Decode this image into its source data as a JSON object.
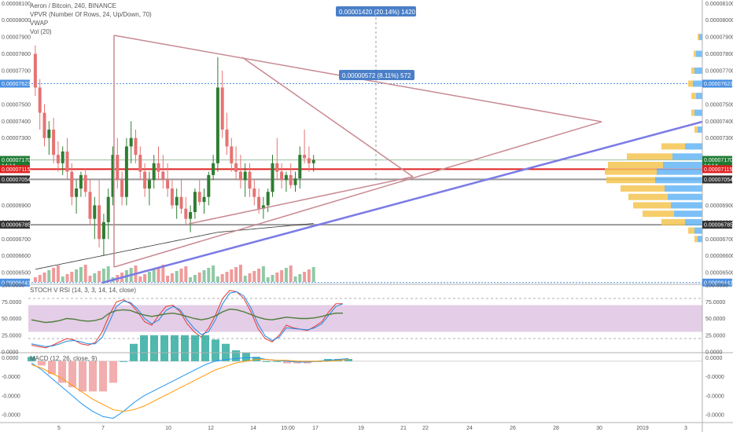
{
  "legend": {
    "title": "Aeron / Bitcoin, 240, BINANCE",
    "indicators": [
      "VPVR (Number Of Rows, 24, Up/Down, 70)",
      "VWAP",
      "Vol (20)"
    ],
    "stoch_label": "STOCH V RSI (14, 3, 3, 14, 14, close)",
    "macd_label": "MACD (12, 26, close, 9)"
  },
  "measurements": [
    {
      "text": "0.00001420 (20.14%) 1420"
    },
    {
      "text": "0.00000572 (8.11%) 572"
    }
  ],
  "price_axis": {
    "ticks": [
      "0.00008100",
      "0.00008000",
      "0.00007900",
      "0.00007800",
      "0.00007700",
      "0.00007500",
      "0.00007400",
      "0.00007300",
      "0.00006900",
      "0.00006800",
      "0.00006700",
      "0.00006600",
      "0.00006500"
    ],
    "tick_values": [
      8100,
      8000,
      7900,
      7800,
      7700,
      7500,
      7400,
      7300,
      6900,
      6800,
      6700,
      6600,
      6500
    ],
    "tags_left": [
      {
        "text": "0.00007623",
        "value": 7623,
        "color": "#4a90e2"
      },
      {
        "text": "0.00007170",
        "value": 7170,
        "color": "#1e7a33"
      },
      {
        "text": "14:14",
        "value": 7135,
        "color": "#1e7a33"
      },
      {
        "text": "0.00007115",
        "value": 7115,
        "color": "#e02020"
      },
      {
        "text": "0.00007054",
        "value": 7054,
        "color": "#333333"
      },
      {
        "text": "0.00006785",
        "value": 6785,
        "color": "#333333"
      },
      {
        "text": "0.00006441",
        "value": 6441,
        "color": "#4a90e2"
      }
    ],
    "tags_right": [
      {
        "text": "0.00007623",
        "value": 7623,
        "color": "#4a90e2"
      },
      {
        "text": "0.00007170",
        "value": 7170,
        "color": "#1e7a33"
      },
      {
        "text": "14:14",
        "value": 7135,
        "color": "#1e7a33"
      },
      {
        "text": "0.00007115",
        "value": 7115,
        "color": "#e02020"
      },
      {
        "text": "0.00007054",
        "value": 7054,
        "color": "#333333"
      },
      {
        "text": "0.00006785",
        "value": 6785,
        "color": "#333333"
      },
      {
        "text": "0.00006441",
        "value": 6441,
        "color": "#4a90e2"
      }
    ]
  },
  "stoch_axis": {
    "ticks": [
      "100.0000",
      "75.0000",
      "50.0000",
      "25.0000",
      "0.0000"
    ],
    "tick_values": [
      100,
      75,
      50,
      25,
      0
    ]
  },
  "macd_axis": {
    "ticks": [
      "0.0000",
      "-0.0000",
      "-0.0000",
      "-0.0000"
    ],
    "tick_values": [
      4e-06,
      -1.8e-05,
      -4e-05,
      -6.2e-05
    ]
  },
  "time_axis": {
    "labels": [
      "5",
      "7",
      "10",
      "12",
      "14",
      "15:00",
      "17",
      "19",
      "21",
      "22",
      "24",
      "26",
      "28",
      "30",
      "2019",
      "3"
    ]
  },
  "colors": {
    "up": "#2e7d32",
    "down": "#e57373",
    "vol_up": "#8fc9a5",
    "vol_down": "#ef9a9a",
    "triangle": "#c88a92",
    "trend": "#7b7be6",
    "resistance": "#e02020",
    "vpvr_up": "#64b5f6",
    "vpvr_down": "#f5c451",
    "stoch_band": "#d8b8dc",
    "k_line": "#e53935",
    "d_line": "#1e88e5",
    "rsi_line": "#4e7d3a",
    "macd_line": "#2196f3",
    "signal_line": "#ff9800"
  },
  "chart_data": [
    {
      "type": "candlestick",
      "title": "Aeron / Bitcoin, 240, BINANCE",
      "price_unit_note": "values in 1e-8 BTC (satoshi)",
      "ylim": [
        6440,
        8120
      ],
      "x_labels": [
        "5",
        "7",
        "10",
        "12",
        "14",
        "15:00",
        "17",
        "19",
        "21",
        "22",
        "24",
        "26",
        "28",
        "30",
        "2019",
        "3"
      ],
      "candles": [
        [
          7800,
          7850,
          7550,
          7600
        ],
        [
          7600,
          7650,
          7350,
          7450
        ],
        [
          7450,
          7500,
          7250,
          7300
        ],
        [
          7300,
          7400,
          7200,
          7350
        ],
        [
          7350,
          7420,
          7150,
          7200
        ],
        [
          7200,
          7280,
          7100,
          7150
        ],
        [
          7150,
          7250,
          7080,
          7220
        ],
        [
          7220,
          7300,
          7050,
          7100
        ],
        [
          7100,
          7150,
          6900,
          6950
        ],
        [
          6950,
          7050,
          6850,
          7000
        ],
        [
          7000,
          7100,
          6950,
          7080
        ],
        [
          7080,
          7120,
          6950,
          6980
        ],
        [
          6980,
          7050,
          6780,
          6820
        ],
        [
          6820,
          6950,
          6700,
          6900
        ],
        [
          6900,
          7050,
          6650,
          6700
        ],
        [
          6700,
          6850,
          6600,
          6800
        ],
        [
          6800,
          7000,
          6700,
          6950
        ],
        [
          6950,
          7250,
          6900,
          7200
        ],
        [
          7200,
          7300,
          7000,
          7050
        ],
        [
          7050,
          7100,
          6900,
          6950
        ],
        [
          6950,
          7300,
          6900,
          7250
        ],
        [
          7250,
          7400,
          7150,
          7300
        ],
        [
          7300,
          7350,
          7150,
          7200
        ],
        [
          7200,
          7250,
          7050,
          7100
        ],
        [
          7100,
          7150,
          6950,
          7000
        ],
        [
          7000,
          7100,
          6900,
          7050
        ],
        [
          7050,
          7200,
          7000,
          7150
        ],
        [
          7150,
          7250,
          7050,
          7100
        ],
        [
          7100,
          7200,
          7000,
          7050
        ],
        [
          7050,
          7150,
          6950,
          7000
        ],
        [
          7000,
          7050,
          6880,
          6900
        ],
        [
          6900,
          7000,
          6820,
          6950
        ],
        [
          6950,
          7050,
          6850,
          6880
        ],
        [
          6880,
          6950,
          6780,
          6820
        ],
        [
          6820,
          6900,
          6740,
          6860
        ],
        [
          6860,
          7000,
          6820,
          6980
        ],
        [
          6980,
          7050,
          6900,
          6920
        ],
        [
          6920,
          7000,
          6850,
          6950
        ],
        [
          6950,
          7100,
          6900,
          7080
        ],
        [
          7080,
          7200,
          7050,
          7150
        ],
        [
          7150,
          7780,
          7100,
          7600
        ],
        [
          7600,
          7700,
          7300,
          7350
        ],
        [
          7350,
          7450,
          7200,
          7250
        ],
        [
          7250,
          7300,
          7100,
          7150
        ],
        [
          7150,
          7250,
          7050,
          7100
        ],
        [
          7100,
          7200,
          7000,
          7050
        ],
        [
          7050,
          7150,
          6950,
          7100
        ],
        [
          7100,
          7150,
          6950,
          7000
        ],
        [
          7000,
          7050,
          6900,
          6950
        ],
        [
          6950,
          7000,
          6850,
          6880
        ],
        [
          6880,
          6950,
          6820,
          6900
        ],
        [
          6900,
          7000,
          6860,
          6980
        ],
        [
          6980,
          7200,
          6950,
          7150
        ],
        [
          7150,
          7300,
          7050,
          7100
        ],
        [
          7100,
          7150,
          7000,
          7050
        ],
        [
          7050,
          7100,
          6980,
          7080
        ],
        [
          7080,
          7150,
          7000,
          7020
        ],
        [
          7020,
          7100,
          6980,
          7060
        ],
        [
          7060,
          7250,
          7000,
          7200
        ],
        [
          7200,
          7350,
          7150,
          7180
        ],
        [
          7180,
          7250,
          7100,
          7150
        ],
        [
          7150,
          7200,
          7100,
          7170
        ]
      ]
    },
    {
      "type": "line",
      "title": "STOCH V RSI (14, 3, 3, 14, 14, close)",
      "ylim": [
        0,
        100
      ],
      "band": [
        30,
        70
      ],
      "series": [
        {
          "name": "K",
          "values": [
            10,
            8,
            6,
            10,
            15,
            20,
            18,
            12,
            10,
            14,
            30,
            55,
            75,
            78,
            72,
            60,
            45,
            40,
            55,
            68,
            70,
            60,
            42,
            30,
            22,
            35,
            55,
            80,
            92,
            90,
            80,
            60,
            35,
            20,
            15,
            25,
            40,
            36,
            34,
            32,
            38,
            45,
            60,
            72,
            72
          ]
        },
        {
          "name": "D",
          "values": [
            12,
            10,
            8,
            9,
            12,
            16,
            17,
            15,
            12,
            12,
            22,
            45,
            68,
            76,
            74,
            64,
            50,
            42,
            48,
            62,
            68,
            63,
            48,
            35,
            26,
            30,
            48,
            72,
            88,
            90,
            84,
            66,
            42,
            24,
            17,
            22,
            36,
            35,
            34,
            33,
            36,
            42,
            55,
            68,
            72
          ]
        },
        {
          "name": "RSI",
          "values": [
            48,
            46,
            44,
            45,
            47,
            50,
            49,
            47,
            46,
            47,
            50,
            58,
            62,
            63,
            62,
            58,
            55,
            53,
            55,
            57,
            58,
            56,
            53,
            50,
            48,
            50,
            54,
            60,
            64,
            63,
            60,
            56,
            52,
            49,
            48,
            50,
            52,
            51,
            50,
            50,
            51,
            53,
            56,
            58,
            58
          ]
        }
      ]
    },
    {
      "type": "line",
      "title": "MACD (12, 26, close, 9)",
      "ylim": [
        -7e-05,
        8e-06
      ],
      "series": [
        {
          "name": "MACD",
          "values": [
            -2e-06,
            -1e-05,
            -2e-05,
            -3e-05,
            -4e-05,
            -5e-05,
            -5.8e-05,
            -6.4e-05,
            -6.6e-05,
            -5.8e-05,
            -4.8e-05,
            -4e-05,
            -3.4e-05,
            -2.8e-05,
            -2.2e-05,
            -1.6e-05,
            -1e-05,
            -4e-06,
            0.0,
            2e-06,
            3e-06,
            4e-06,
            4e-06,
            2e-06,
            1e-06,
            0.0,
            -1e-06,
            -1e-06,
            0.0,
            1e-06,
            2e-06,
            3e-06
          ]
        },
        {
          "name": "Signal",
          "values": [
            -4e-06,
            -8e-06,
            -1.4e-05,
            -2e-05,
            -2.8e-05,
            -3.6e-05,
            -4.4e-05,
            -5e-05,
            -5.6e-05,
            -5.8e-05,
            -5.6e-05,
            -5.2e-05,
            -4.6e-05,
            -4e-05,
            -3.4e-05,
            -2.8e-05,
            -2.2e-05,
            -1.6e-05,
            -1e-05,
            -6e-06,
            -2e-06,
            0.0,
            2e-06,
            2e-06,
            1e-06,
            1e-06,
            0.0,
            0.0,
            0.0,
            0.0,
            1e-06,
            2e-06
          ]
        }
      ]
    }
  ]
}
